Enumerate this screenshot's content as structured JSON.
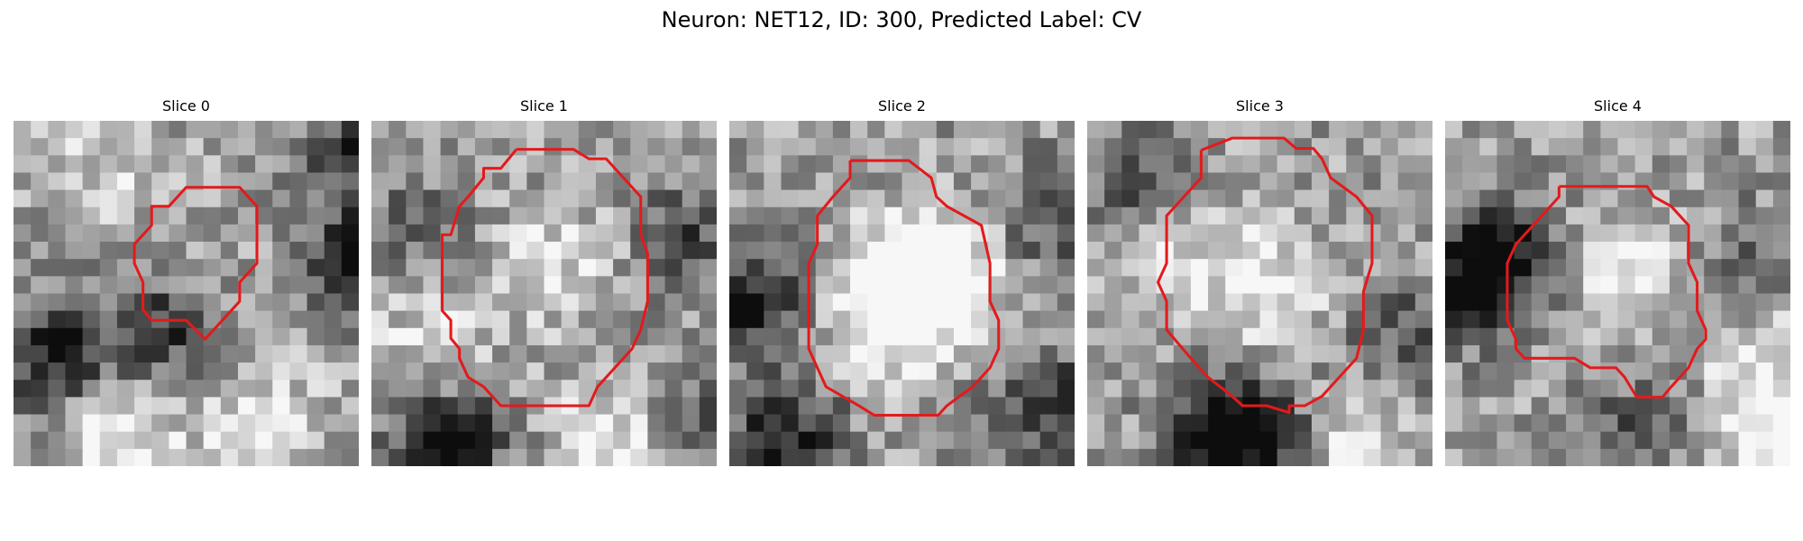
{
  "figure": {
    "title": "Neuron: NET12, ID: 300, Predicted Label: CV"
  },
  "contour_color": "#e31a1c",
  "slices": [
    {
      "title": "Slice 0",
      "image": "grayscale EM patch: dark band on right, dark strip lower-left; small darker blob enclosed",
      "contour": [
        [
          11.7,
          3.85
        ],
        [
          13.1,
          3.85
        ],
        [
          14.1,
          4.95
        ],
        [
          14.1,
          8.25
        ],
        [
          13.1,
          9.35
        ],
        [
          13.1,
          10.45
        ],
        [
          12.1,
          11.55
        ],
        [
          11.1,
          12.65
        ],
        [
          10.0,
          11.55
        ],
        [
          8.0,
          11.55
        ],
        [
          7.5,
          10.95
        ],
        [
          7.5,
          9.35
        ],
        [
          7.0,
          8.25
        ],
        [
          7.0,
          7.15
        ],
        [
          8.0,
          6.05
        ],
        [
          8.0,
          4.95
        ],
        [
          9.0,
          4.95
        ],
        [
          10.0,
          3.85
        ],
        [
          11.7,
          3.85
        ]
      ],
      "dark": [
        [
          20,
          8,
          0.7
        ],
        [
          26,
          12,
          0.6
        ],
        [
          22,
          20,
          0.6
        ],
        [
          8,
          12,
          0.4
        ],
        [
          2,
          13,
          0.5
        ],
        [
          20,
          1,
          0.5
        ]
      ],
      "light": [
        [
          6,
          18,
          0.35
        ],
        [
          14,
          17,
          0.3
        ],
        [
          5,
          2,
          0.2
        ]
      ]
    },
    {
      "title": "Slice 1",
      "image": "grayscale EM patch with large round vesicle-like region enclosed by contour",
      "contour": [
        [
          8.4,
          1.65
        ],
        [
          11.7,
          1.65
        ],
        [
          12.6,
          2.2
        ],
        [
          13.6,
          2.2
        ],
        [
          15.6,
          4.4
        ],
        [
          15.6,
          6.6
        ],
        [
          16.0,
          7.7
        ],
        [
          16.0,
          10.45
        ],
        [
          15.6,
          12.1
        ],
        [
          15.1,
          13.2
        ],
        [
          14.1,
          14.3
        ],
        [
          13.1,
          15.4
        ],
        [
          12.6,
          16.5
        ],
        [
          7.5,
          16.5
        ],
        [
          6.5,
          15.4
        ],
        [
          5.6,
          14.85
        ],
        [
          5.1,
          13.75
        ],
        [
          5.1,
          13.2
        ],
        [
          4.6,
          12.6
        ],
        [
          4.6,
          11.55
        ],
        [
          4.1,
          11.0
        ],
        [
          4.1,
          6.6
        ],
        [
          4.6,
          6.6
        ],
        [
          5.1,
          4.95
        ],
        [
          5.6,
          4.4
        ],
        [
          6.5,
          3.3
        ],
        [
          6.5,
          2.75
        ],
        [
          7.5,
          2.75
        ],
        [
          8.4,
          1.65
        ]
      ],
      "dark": [
        [
          4,
          18,
          0.6
        ],
        [
          18,
          17,
          0.3
        ],
        [
          2,
          6,
          0.25
        ],
        [
          18,
          6,
          0.3
        ]
      ],
      "light": [
        [
          10,
          8,
          0.25
        ],
        [
          14,
          18,
          0.35
        ],
        [
          3,
          12,
          0.25
        ]
      ]
    },
    {
      "title": "Slice 2",
      "image": "grayscale EM patch with bright round region in center enclosed by contour",
      "contour": [
        [
          7.0,
          2.3
        ],
        [
          10.4,
          2.3
        ],
        [
          11.7,
          3.3
        ],
        [
          12.0,
          4.4
        ],
        [
          12.6,
          4.95
        ],
        [
          14.6,
          6.05
        ],
        [
          15.1,
          8.25
        ],
        [
          15.1,
          10.45
        ],
        [
          15.6,
          11.55
        ],
        [
          15.6,
          13.2
        ],
        [
          15.1,
          14.3
        ],
        [
          14.1,
          15.4
        ],
        [
          12.6,
          16.5
        ],
        [
          12.1,
          17.05
        ],
        [
          8.4,
          17.05
        ],
        [
          7.5,
          16.5
        ],
        [
          5.6,
          15.4
        ],
        [
          5.1,
          14.3
        ],
        [
          4.6,
          13.2
        ],
        [
          4.6,
          12.65
        ],
        [
          4.6,
          8.25
        ],
        [
          5.1,
          7.15
        ],
        [
          5.1,
          5.5
        ],
        [
          6.0,
          4.4
        ],
        [
          7.0,
          3.3
        ],
        [
          7.0,
          2.3
        ]
      ],
      "dark": [
        [
          1,
          10,
          0.5
        ],
        [
          3,
          18,
          0.55
        ],
        [
          18,
          16,
          0.4
        ],
        [
          18,
          5,
          0.3
        ]
      ],
      "light": [
        [
          10,
          9,
          0.45
        ],
        [
          8,
          11,
          0.3
        ],
        [
          12,
          8,
          0.35
        ]
      ]
    },
    {
      "title": "Slice 3",
      "image": "grayscale EM patch with large bright round region enclosed by contour, dark area at bottom",
      "contour": [
        [
          6.6,
          1.7
        ],
        [
          8.4,
          1.0
        ],
        [
          11.4,
          1.0
        ],
        [
          12.1,
          1.6
        ],
        [
          13.1,
          1.6
        ],
        [
          13.6,
          2.2
        ],
        [
          14.1,
          3.3
        ],
        [
          15.6,
          4.4
        ],
        [
          16.5,
          5.5
        ],
        [
          16.5,
          8.25
        ],
        [
          16.0,
          9.9
        ],
        [
          16.0,
          12.1
        ],
        [
          15.6,
          13.75
        ],
        [
          14.6,
          14.85
        ],
        [
          13.6,
          15.95
        ],
        [
          12.6,
          16.5
        ],
        [
          11.7,
          16.5
        ],
        [
          11.7,
          16.9
        ],
        [
          10.4,
          16.5
        ],
        [
          9.0,
          16.5
        ],
        [
          8.4,
          15.95
        ],
        [
          7.0,
          14.85
        ],
        [
          6.0,
          13.75
        ],
        [
          4.6,
          12.1
        ],
        [
          4.6,
          10.45
        ],
        [
          4.1,
          9.35
        ],
        [
          4.6,
          8.25
        ],
        [
          4.6,
          5.5
        ],
        [
          5.6,
          4.4
        ],
        [
          6.6,
          3.3
        ],
        [
          6.6,
          1.7
        ]
      ],
      "dark": [
        [
          7,
          17,
          0.55
        ],
        [
          10,
          18,
          0.45
        ],
        [
          2,
          3,
          0.3
        ],
        [
          18,
          12,
          0.3
        ]
      ],
      "light": [
        [
          10,
          9,
          0.35
        ],
        [
          14,
          19,
          0.3
        ],
        [
          4,
          8,
          0.25
        ]
      ]
    },
    {
      "title": "Slice 4",
      "image": "grayscale EM patch with dark left region and bright round region enclosed by contour",
      "contour": [
        [
          6.6,
          3.8
        ],
        [
          8.4,
          3.8
        ],
        [
          11.7,
          3.8
        ],
        [
          12.1,
          4.4
        ],
        [
          13.1,
          4.95
        ],
        [
          14.1,
          6.05
        ],
        [
          14.1,
          8.25
        ],
        [
          14.6,
          9.35
        ],
        [
          14.6,
          11.0
        ],
        [
          15.1,
          12.1
        ],
        [
          15.1,
          12.65
        ],
        [
          14.6,
          13.2
        ],
        [
          14.1,
          14.3
        ],
        [
          13.1,
          15.4
        ],
        [
          12.6,
          16.0
        ],
        [
          11.1,
          16.0
        ],
        [
          10.4,
          14.85
        ],
        [
          9.9,
          14.3
        ],
        [
          8.4,
          14.3
        ],
        [
          7.5,
          13.75
        ],
        [
          4.6,
          13.75
        ],
        [
          4.1,
          13.2
        ],
        [
          4.1,
          12.65
        ],
        [
          3.6,
          11.55
        ],
        [
          3.6,
          8.25
        ],
        [
          4.1,
          7.15
        ],
        [
          4.6,
          6.6
        ],
        [
          5.6,
          5.5
        ],
        [
          6.6,
          4.4
        ],
        [
          6.6,
          3.8
        ]
      ],
      "dark": [
        [
          1,
          9,
          0.6
        ],
        [
          3,
          7,
          0.35
        ],
        [
          17,
          8,
          0.3
        ],
        [
          11,
          17,
          0.25
        ]
      ],
      "light": [
        [
          19,
          18,
          0.45
        ],
        [
          10,
          8,
          0.3
        ],
        [
          18,
          13,
          0.25
        ]
      ]
    }
  ]
}
